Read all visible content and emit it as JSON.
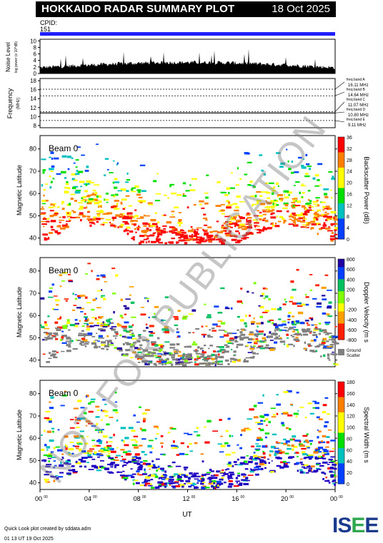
{
  "header": {
    "title": "HOKKAIDO RADAR SUMMARY PLOT",
    "date": "18 Oct 2025"
  },
  "cpid": {
    "label": "CPID:",
    "value": "151"
  },
  "noise_panel": {
    "ylabel": "Noise Level",
    "ylabel_units": "log power (x 10^dB)",
    "ticks": [
      "0",
      "2",
      "4",
      "6",
      "8",
      "10"
    ]
  },
  "freq_panel": {
    "ylabel": "Frequency",
    "ylabel_units": "(MHz)",
    "ticks": [
      "8",
      "10",
      "12",
      "14",
      "16",
      "18"
    ],
    "bands": [
      {
        "name": "freq band A",
        "value": "16.11 MHz"
      },
      {
        "name": "freq band B",
        "value": "14.64 MHz"
      },
      {
        "name": "freq band C",
        "value": "11.07 MHz"
      },
      {
        "name": "freq band D",
        "value": "10.80 MHz"
      },
      {
        "name": "freq band E",
        "value": "9.11 MHz"
      }
    ]
  },
  "panels": [
    {
      "beam": "Beam  0",
      "ylabel": "Magnetic Latitude",
      "cbar_label": "Backscatter Power (dB)",
      "cbar_ticks": [
        "0",
        "4",
        "8",
        "12",
        "16",
        "20",
        "24",
        "28",
        "32",
        "36"
      ]
    },
    {
      "beam": "Beam  0",
      "ylabel": "Magnetic Latitude",
      "cbar_label": "Doppler Velocity (m s",
      "cbar_ticks": [
        "800",
        "600",
        "400",
        "200",
        "0",
        "-200",
        "-400",
        "-600",
        "-800"
      ],
      "ground_label": "Ground",
      "ground_label2": "Scatter"
    },
    {
      "beam": "Beam  0",
      "ylabel": "Magnetic Latitude",
      "cbar_label": "Spectral Width (m s",
      "cbar_ticks": [
        "0",
        "20",
        "40",
        "60",
        "80",
        "100",
        "120",
        "140",
        "160",
        "180"
      ]
    }
  ],
  "lat_ticks": [
    "40",
    "50",
    "60",
    "70",
    "80"
  ],
  "xaxis": {
    "label": "UT",
    "ticks": [
      "00",
      "04",
      "08",
      "12",
      "16",
      "20",
      "00"
    ],
    "tick_sup": "00"
  },
  "watermark": "NOT FOR PUBLICATION",
  "footer": {
    "line1": "Quick Look plot created by sddata.adm",
    "line2": "01 13 UT 19 Oct 2025"
  },
  "logo": {
    "text": "ISEE"
  },
  "colors": {
    "header_bg": "#000000",
    "cpid_bar": "#2020ff",
    "ground_scatter": "#808080"
  }
}
